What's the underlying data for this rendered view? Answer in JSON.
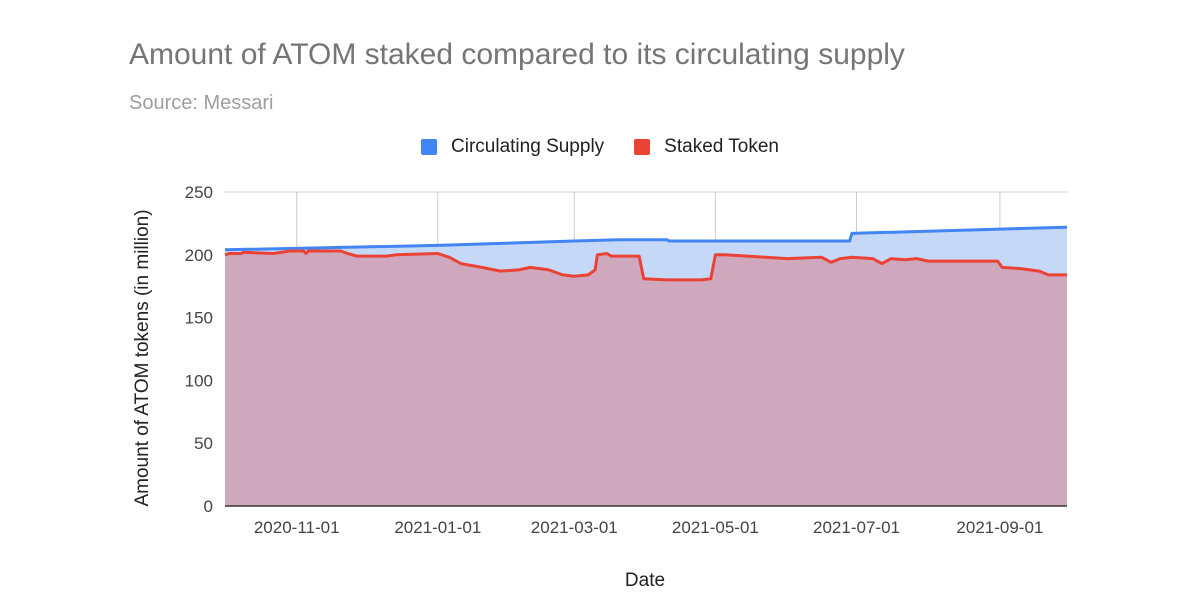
{
  "chart_data": {
    "type": "area",
    "title": "Amount of ATOM staked compared to its circulating supply",
    "subtitle": "Source: Messari",
    "xlabel": "Date",
    "ylabel": "Amount of ATOM tokens (in million)",
    "ylim": [
      0,
      250
    ],
    "yticks": [
      "0",
      "50",
      "100",
      "150",
      "200",
      "250"
    ],
    "xlim": [
      "2020-10-01",
      "2021-09-30"
    ],
    "xticks": [
      "2020-11-01",
      "2021-01-01",
      "2021-03-01",
      "2021-05-01",
      "2021-07-01",
      "2021-09-01"
    ],
    "grid": true,
    "legend_position": "top",
    "series": [
      {
        "name": "Circulating Supply",
        "color": "#4285f4",
        "points": [
          [
            "2020-10-01",
            204
          ],
          [
            "2021-01-01",
            207.5
          ],
          [
            "2021-03-01",
            211
          ],
          [
            "2021-03-20",
            212
          ],
          [
            "2021-04-10",
            212
          ],
          [
            "2021-04-11",
            211
          ],
          [
            "2021-06-28",
            211
          ],
          [
            "2021-06-29",
            217
          ],
          [
            "2021-09-30",
            222
          ]
        ]
      },
      {
        "name": "Staked Token",
        "color": "#ea4335",
        "points": [
          [
            "2020-10-01",
            200
          ],
          [
            "2020-10-03",
            201
          ],
          [
            "2020-10-08",
            201
          ],
          [
            "2020-10-09",
            202
          ],
          [
            "2020-10-22",
            201
          ],
          [
            "2020-10-29",
            203
          ],
          [
            "2020-11-04",
            203
          ],
          [
            "2020-11-05",
            201
          ],
          [
            "2020-11-06",
            203
          ],
          [
            "2020-11-20",
            203
          ],
          [
            "2020-11-23",
            201
          ],
          [
            "2020-11-27",
            199
          ],
          [
            "2020-12-10",
            199
          ],
          [
            "2020-12-14",
            200
          ],
          [
            "2021-01-01",
            201
          ],
          [
            "2021-01-06",
            198
          ],
          [
            "2021-01-11",
            193
          ],
          [
            "2021-01-20",
            190
          ],
          [
            "2021-01-28",
            187
          ],
          [
            "2021-02-05",
            188
          ],
          [
            "2021-02-10",
            190
          ],
          [
            "2021-02-18",
            188
          ],
          [
            "2021-02-24",
            184
          ],
          [
            "2021-03-01",
            183
          ],
          [
            "2021-03-07",
            184
          ],
          [
            "2021-03-10",
            188
          ],
          [
            "2021-03-11",
            200
          ],
          [
            "2021-03-15",
            201
          ],
          [
            "2021-03-17",
            199
          ],
          [
            "2021-03-29",
            199
          ],
          [
            "2021-03-31",
            181
          ],
          [
            "2021-04-10",
            180
          ],
          [
            "2021-04-25",
            180
          ],
          [
            "2021-04-29",
            181
          ],
          [
            "2021-05-01",
            200
          ],
          [
            "2021-05-05",
            200
          ],
          [
            "2021-05-15",
            199
          ],
          [
            "2021-06-01",
            197
          ],
          [
            "2021-06-16",
            198
          ],
          [
            "2021-06-20",
            194
          ],
          [
            "2021-06-24",
            197
          ],
          [
            "2021-06-29",
            198
          ],
          [
            "2021-07-08",
            197
          ],
          [
            "2021-07-12",
            193
          ],
          [
            "2021-07-16",
            197
          ],
          [
            "2021-07-22",
            196
          ],
          [
            "2021-07-27",
            197
          ],
          [
            "2021-08-01",
            195
          ],
          [
            "2021-08-31",
            195
          ],
          [
            "2021-09-02",
            190
          ],
          [
            "2021-09-10",
            189
          ],
          [
            "2021-09-18",
            187
          ],
          [
            "2021-09-22",
            184
          ],
          [
            "2021-09-27",
            184
          ],
          [
            "2021-09-30",
            184
          ]
        ]
      }
    ]
  }
}
